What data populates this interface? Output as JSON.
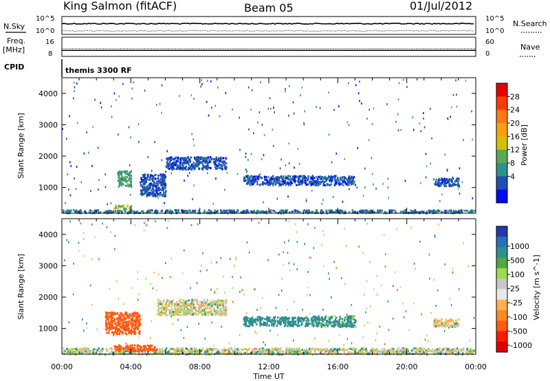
{
  "header": {
    "station": "King Salmon (fitACF)",
    "beam": "Beam 05",
    "date": "01/Jul/2012"
  },
  "noise_panel": {
    "left_label": "N.Sky",
    "right_label": "N.Search",
    "left_ticks": [
      "10^5",
      "10^0"
    ],
    "right_ticks": [
      "10^5",
      "10^0"
    ]
  },
  "freq_panel": {
    "left_label_1": "Freq.",
    "left_label_2": "[MHz]",
    "right_label": "Nave",
    "left_ticks": [
      "16",
      "8"
    ],
    "right_ticks": [
      "60",
      "0"
    ]
  },
  "cpid": {
    "label": "CPID",
    "value": "themis 3300 RF"
  },
  "x_axis": {
    "title": "Time UT",
    "ticks": [
      "00:00",
      "04:00",
      "08:00",
      "12:00",
      "16:00",
      "20:00",
      "00:00"
    ]
  },
  "colorbar_power": {
    "title": "Power [dB]",
    "labels": [
      "28",
      "24",
      "20",
      "16",
      "12",
      "8",
      "4"
    ],
    "colors": [
      "#e80000",
      "#ff3a00",
      "#ff7a10",
      "#ff9f10",
      "#d8c000",
      "#58a858",
      "#2e8f8f",
      "#1f4fb0",
      "#0008ff"
    ]
  },
  "colorbar_velocity": {
    "title": "Velocity [m s^-1]",
    "labels": [
      "1000",
      "500",
      "100",
      "25",
      "-25",
      "-100",
      "-500",
      "-1000"
    ],
    "colors": [
      "#1f3aa8",
      "#2a70b8",
      "#2e8f8f",
      "#4caa40",
      "#9bdb50",
      "#c8c8c8",
      "#e8e8e8",
      "#ffb050",
      "#ff8a20",
      "#ff5a10",
      "#ff1a00",
      "#e00000"
    ]
  },
  "chart_data": [
    {
      "type": "line",
      "panel": "noise",
      "series": [
        {
          "name": "N.Sky",
          "style": "solid",
          "level_log10": 3.0
        },
        {
          "name": "N.Search",
          "style": "dotted",
          "level_log10": 1.0
        }
      ],
      "xlim_hours": [
        0,
        24
      ],
      "ylim_log10": [
        0,
        5
      ]
    },
    {
      "type": "line",
      "panel": "frequency",
      "series": [
        {
          "name": "Freq. [MHz]",
          "style": "solid",
          "value": 10.5
        },
        {
          "name": "Nave",
          "style": "dotted",
          "value": 24
        }
      ],
      "xlim_hours": [
        0,
        24
      ],
      "ylim_freq": [
        8,
        16
      ],
      "ylim_nave": [
        0,
        60
      ]
    },
    {
      "type": "heatmap",
      "panel": "power",
      "xlabel": "Time UT",
      "ylabel": "Slant Range [km]",
      "xlim_hours": [
        0,
        24
      ],
      "ylim_km": [
        180,
        4500
      ],
      "y_ticks": [
        1000,
        2000,
        3000,
        4000
      ],
      "clim_dB": [
        0,
        30
      ],
      "features": [
        {
          "t_start": 0.0,
          "t_end": 24.0,
          "range_center": 260,
          "range_width": 100,
          "value": 8
        },
        {
          "t_start": 3.0,
          "t_end": 4.0,
          "range_center": 400,
          "range_width": 120,
          "value": 16
        },
        {
          "t_start": 3.2,
          "t_end": 4.0,
          "range_center": 1300,
          "range_width": 500,
          "value": 12
        },
        {
          "t_start": 4.5,
          "t_end": 6.0,
          "range_center": 1100,
          "range_width": 700,
          "value": 6
        },
        {
          "t_start": 6.0,
          "t_end": 9.5,
          "range_center": 1800,
          "range_width": 400,
          "value": 6
        },
        {
          "t_start": 10.5,
          "t_end": 17.0,
          "range_center": 1250,
          "range_width": 300,
          "value": 6
        },
        {
          "t_start": 21.5,
          "t_end": 23.0,
          "range_center": 1200,
          "range_width": 250,
          "value": 6
        }
      ]
    },
    {
      "type": "heatmap",
      "panel": "velocity",
      "xlabel": "Time UT",
      "ylabel": "Slant Range [km]",
      "xlim_hours": [
        0,
        24
      ],
      "ylim_km": [
        180,
        4500
      ],
      "y_ticks": [
        1000,
        2000,
        3000,
        4000
      ],
      "clim_ms": [
        -1000,
        1000
      ],
      "features": [
        {
          "t_start": 0.0,
          "t_end": 24.0,
          "range_center": 300,
          "range_width": 200,
          "value": 30
        },
        {
          "t_start": 2.5,
          "t_end": 4.5,
          "range_center": 1200,
          "range_width": 700,
          "value": -300
        },
        {
          "t_start": 3.0,
          "t_end": 5.5,
          "range_center": 400,
          "range_width": 200,
          "value": -200
        },
        {
          "t_start": 5.5,
          "t_end": 9.5,
          "range_center": 1700,
          "range_width": 500,
          "value": 0
        },
        {
          "t_start": 10.5,
          "t_end": 14.5,
          "range_center": 1250,
          "range_width": 300,
          "value": 200
        },
        {
          "t_start": 14.5,
          "t_end": 17.0,
          "range_center": 1250,
          "range_width": 350,
          "value": 150
        },
        {
          "t_start": 21.5,
          "t_end": 23.0,
          "range_center": 1200,
          "range_width": 250,
          "value": 0
        }
      ]
    }
  ]
}
